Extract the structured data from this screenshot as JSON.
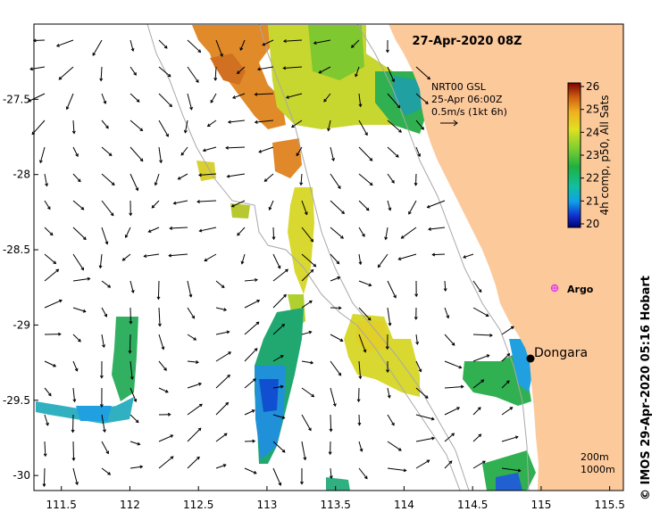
{
  "map": {
    "date_label": "27-Apr-2020 08Z",
    "current_label_line1": "NRT00 GSL",
    "current_label_line2": "25-Apr 06:00Z",
    "current_label_line3": "0.5m/s (1kt 6h)",
    "colorbar_label": "4h comp, p50, All Sats",
    "colorbar_ticks": [
      "26",
      "25",
      "24",
      "23",
      "22",
      "21",
      "20"
    ],
    "colorbar_min": 20,
    "colorbar_max": 26,
    "credit": "© IMOS 29-Apr-2020 05:16 Hobart",
    "depth_label_1": "200m",
    "depth_label_2": "1000m",
    "x_ticks": [
      "111.5",
      "112",
      "112.5",
      "113",
      "113.5",
      "114",
      "114.5",
      "115",
      "115.5"
    ],
    "y_ticks": [
      "-27.5",
      "-28",
      "-28.5",
      "-29",
      "-29.5",
      "-30"
    ],
    "x_range": [
      111.3,
      115.6
    ],
    "y_range": [
      -30.1,
      -27.0
    ],
    "places": [
      {
        "name": "Dongara",
        "lon": 114.93,
        "lat": -29.25
      },
      {
        "name": "Argo",
        "lon": 115.1,
        "lat": -28.82
      }
    ],
    "colors": {
      "land": "#fcc99b",
      "ocean": "#ffffff",
      "argo": "#e23cf0",
      "bathymetry": "#a8a8a8"
    }
  }
}
